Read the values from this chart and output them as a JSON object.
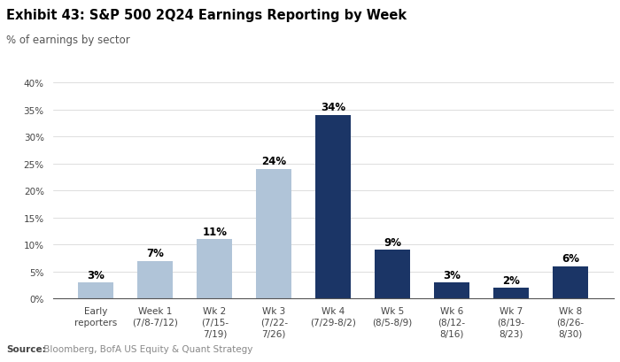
{
  "title": "Exhibit 43: S&P 500 2Q24 Earnings Reporting by Week",
  "subtitle": "% of earnings by sector",
  "source_bold": "Source:",
  "source_rest": " Bloomberg, BofA US Equity & Quant Strategy",
  "categories": [
    "Early\nreporters",
    "Week 1\n(7/8-7/12)",
    "Wk 2\n(7/15-\n7/19)",
    "Wk 3\n(7/22-\n7/26)",
    "Wk 4\n(7/29-8/2)",
    "Wk 5\n(8/5-8/9)",
    "Wk 6\n(8/12-\n8/16)",
    "Wk 7\n(8/19-\n8/23)",
    "Wk 8\n(8/26-\n8/30)"
  ],
  "values": [
    3,
    7,
    11,
    24,
    34,
    9,
    3,
    2,
    6
  ],
  "bar_colors": [
    "#b0c4d8",
    "#b0c4d8",
    "#b0c4d8",
    "#b0c4d8",
    "#1b3566",
    "#1b3566",
    "#1b3566",
    "#1b3566",
    "#1b3566"
  ],
  "labels": [
    "3%",
    "7%",
    "11%",
    "24%",
    "34%",
    "9%",
    "3%",
    "2%",
    "6%"
  ],
  "ylim": [
    0,
    40
  ],
  "yticks": [
    0,
    5,
    10,
    15,
    20,
    25,
    30,
    35,
    40
  ],
  "ytick_labels": [
    "0%",
    "5%",
    "10%",
    "15%",
    "20%",
    "25%",
    "30%",
    "35%",
    "40%"
  ],
  "background_color": "#ffffff",
  "title_fontsize": 10.5,
  "subtitle_fontsize": 8.5,
  "label_fontsize": 8.5,
  "tick_fontsize": 7.5,
  "source_fontsize": 7.5,
  "grid_color": "#d0d0d0",
  "bar_width": 0.6
}
